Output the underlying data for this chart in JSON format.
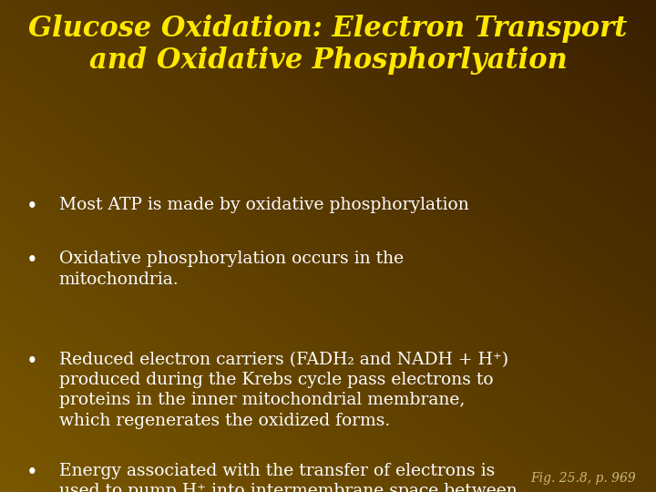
{
  "title_line1": "Glucose Oxidation: Electron Transport",
  "title_line2": "and Oxidative Phosphorlyation",
  "title_color": "#FFE800",
  "title_fontsize": 22,
  "body_color": "#FFFFFF",
  "body_fontsize": 13.5,
  "caption": "Fig. 25.8, p. 969",
  "caption_color": "#C8B87A",
  "caption_fontsize": 10,
  "bg_colors": [
    "#3A1F00",
    "#7A5800"
  ],
  "bullet_char": "•",
  "bullet_texts": [
    "Most ATP is made by oxidative phosphorylation",
    "Oxidative phosphorylation occurs in the\nmitochondria.",
    "Reduced electron carriers (FADH₂ and NADH + H⁺)\nproduced during the Krebs cycle pass electrons to\nproteins in the inner mitochondrial membrane,\nwhich regenerates the oxidized forms.",
    "Energy associated with the transfer of electrons is\nused to pump H⁺ into intermembrane space between\nthe inner and outer mitochondrial membranes."
  ]
}
